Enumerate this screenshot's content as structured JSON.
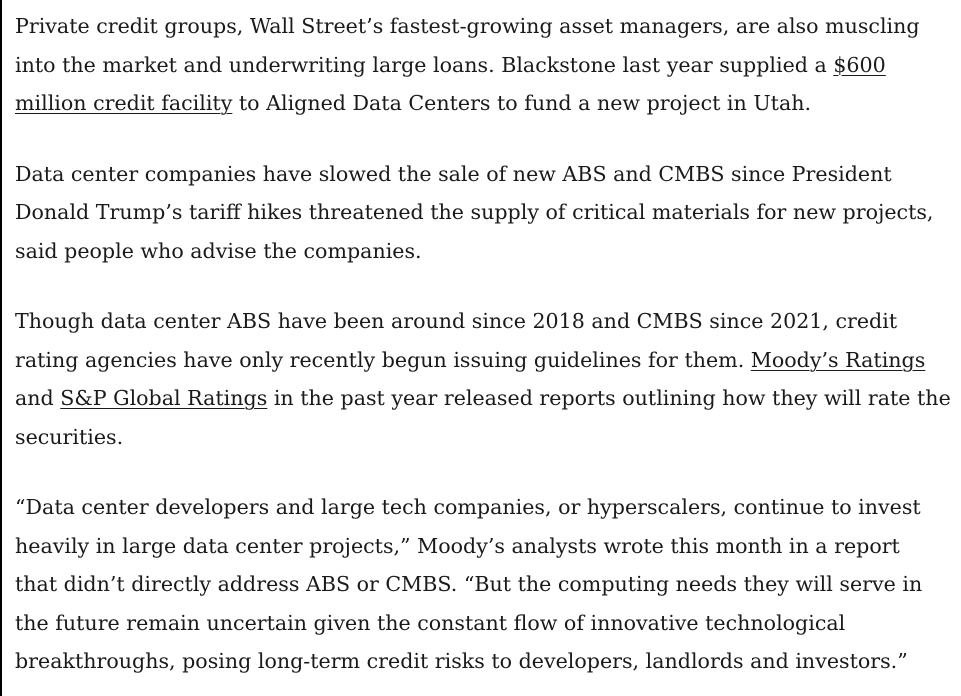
{
  "article": {
    "p1": {
      "l1": "Private credit groups, Wall Street’s fastest-growing asset managers, are also muscling",
      "l2_a": "into the market and underwriting large loans. Blackstone last year supplied a ",
      "link_600_a": "$600",
      "link_600_b": "million credit facility",
      "l3_b": " to Aligned Data Centers to fund a new project in Utah."
    },
    "p2": {
      "l1": "Data center companies have slowed the sale of new ABS and CMBS since President",
      "l2": "Donald Trump’s tariff hikes threatened the supply of critical materials for new projects,",
      "l3": "said people who advise the companies."
    },
    "p3": {
      "l1": "Though data center ABS have been around since 2018 and CMBS since 2021, credit",
      "l2_a": "rating agencies have only recently begun issuing guidelines for them. ",
      "link_moodys": "Moody’s Ratings",
      "l3_a": "and ",
      "link_sp": "S&P Global Ratings",
      "l3_b": " in the past year released reports outlining how they will rate the",
      "l4": "securities."
    },
    "p4": {
      "l1": "“Data center developers and large tech companies, or hyperscalers, continue to invest",
      "l2": "heavily in large data center projects,” Moody’s analysts wrote this month in a report",
      "l3": "that didn’t directly address ABS or CMBS. “But the computing needs they will serve in",
      "l4": "the future remain uncertain given the constant flow of innovative technological",
      "l5": "breakthroughs, posing long-term credit risks to developers, landlords and investors.”"
    }
  },
  "colors": {
    "text": "#1a1a1a",
    "left_rule": "#000000",
    "background": "#ffffff"
  }
}
